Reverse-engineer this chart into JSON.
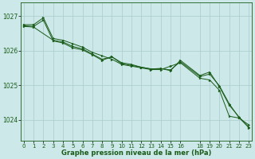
{
  "xlabel": "Graphe pression niveau de la mer (hPa)",
  "background_color": "#cce8e8",
  "grid_color": "#aacccc",
  "line_color": "#1a5c1a",
  "marker_color": "#1a5c1a",
  "x_ticks": [
    0,
    1,
    2,
    3,
    4,
    5,
    6,
    7,
    8,
    9,
    10,
    11,
    12,
    13,
    14,
    15,
    16,
    18,
    19,
    20,
    21,
    22,
    23
  ],
  "ylim": [
    1023.4,
    1027.4
  ],
  "xlim": [
    -0.3,
    23.3
  ],
  "yticks": [
    1024,
    1025,
    1026,
    1027
  ],
  "line1_x": [
    0,
    1,
    2,
    3,
    4,
    5,
    6,
    7,
    8,
    9,
    10,
    11,
    12,
    13,
    14,
    15,
    16,
    18,
    19,
    20,
    21,
    22,
    23
  ],
  "line1_y": [
    1026.75,
    1026.75,
    1026.95,
    1026.35,
    1026.3,
    1026.2,
    1026.1,
    1025.95,
    1025.85,
    1025.75,
    1025.6,
    1025.55,
    1025.5,
    1025.45,
    1025.45,
    1025.55,
    1025.65,
    1025.2,
    1025.15,
    1024.85,
    1024.1,
    1024.05,
    1023.85
  ],
  "line2_x": [
    0,
    1,
    3,
    4,
    5,
    6,
    7,
    8,
    9,
    10,
    11,
    12,
    13,
    14,
    15,
    16,
    18,
    19,
    20,
    21,
    22,
    23
  ],
  "line2_y": [
    1026.7,
    1026.68,
    1026.3,
    1026.25,
    1026.12,
    1026.05,
    1025.9,
    1025.75,
    1025.82,
    1025.65,
    1025.6,
    1025.52,
    1025.47,
    1025.48,
    1025.42,
    1025.72,
    1025.28,
    1025.38,
    1024.95,
    1024.42,
    1024.08,
    1023.78
  ],
  "line3_x": [
    0,
    1,
    2,
    3,
    4,
    5,
    6,
    7,
    8,
    9,
    10,
    11,
    12,
    13,
    14,
    15,
    16,
    18,
    19,
    20,
    21,
    22,
    23
  ],
  "line3_y": [
    1026.72,
    1026.7,
    1026.88,
    1026.28,
    1026.22,
    1026.08,
    1026.02,
    1025.88,
    1025.72,
    1025.82,
    1025.62,
    1025.57,
    1025.52,
    1025.47,
    1025.48,
    1025.44,
    1025.68,
    1025.25,
    1025.32,
    1024.98,
    1024.46,
    1024.06,
    1023.77
  ],
  "ylabel_fontsize": 5.5,
  "xlabel_fontsize": 6.0,
  "tick_fontsize": 5.0
}
